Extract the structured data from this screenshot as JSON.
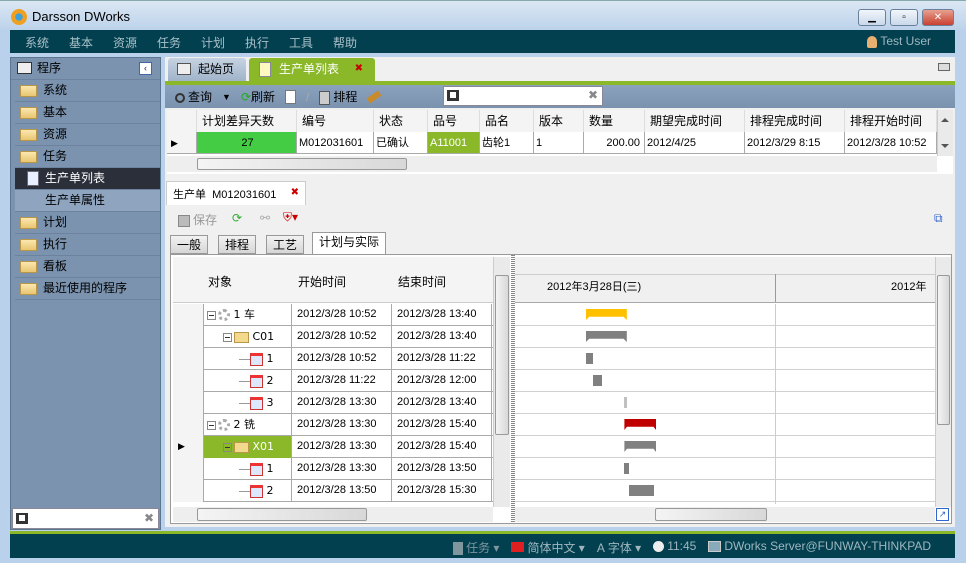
{
  "window": {
    "title": "Darsson DWorks",
    "buttons": [
      "minimize",
      "maximize",
      "close"
    ]
  },
  "menu": [
    "系统",
    "基本",
    "资源",
    "任务",
    "计划",
    "执行",
    "工具",
    "帮助"
  ],
  "user": "Test User",
  "sidebar": {
    "header": "程序",
    "items": [
      {
        "label": "系统",
        "type": "folder"
      },
      {
        "label": "基本",
        "type": "folder"
      },
      {
        "label": "资源",
        "type": "folder"
      },
      {
        "label": "任务",
        "type": "folder"
      },
      {
        "label": "生产单列表",
        "type": "page",
        "selected": true
      },
      {
        "label": "生产单属性",
        "type": "sub"
      },
      {
        "label": "计划",
        "type": "folder"
      },
      {
        "label": "执行",
        "type": "folder"
      },
      {
        "label": "看板",
        "type": "folder"
      },
      {
        "label": "最近使用的程序",
        "type": "recent"
      }
    ],
    "search_value": ""
  },
  "tabs": [
    {
      "label": "起始页",
      "active": false
    },
    {
      "label": "生产单列表",
      "active": true
    }
  ],
  "toolbar": {
    "query": "查询",
    "refresh": "刷新",
    "schedule": "排程",
    "search_value": ""
  },
  "order_grid": {
    "columns": [
      "计划差异天数",
      "编号",
      "状态",
      "品号",
      "品名",
      "版本",
      "数量",
      "期望完成时间",
      "排程完成时间",
      "排程开始时间"
    ],
    "rows": [
      [
        "27",
        "M012031601",
        "已确认",
        "A11001",
        "齿轮1",
        "1",
        "200.00",
        "2012/4/25",
        "2012/3/29 8:15",
        "2012/3/28 10:52"
      ]
    ]
  },
  "detail": {
    "tab_label": "生产单  M012031601",
    "save": "保存",
    "subtabs": [
      "一般",
      "排程",
      "工艺",
      "计划与实际"
    ],
    "active_subtab": "计划与实际",
    "columns": [
      "对象",
      "开始时间",
      "结束时间"
    ],
    "rows": [
      {
        "label": "1 车",
        "level": 0,
        "icon": "gear",
        "start": "2012/3/28 10:52",
        "end": "2012/3/28 13:40",
        "bar": "#ffc000"
      },
      {
        "label": "C01",
        "level": 1,
        "icon": "folder",
        "start": "2012/3/28 10:52",
        "end": "2012/3/28 13:40",
        "bar": "#808080"
      },
      {
        "label": "1",
        "level": 2,
        "icon": "calendar",
        "start": "2012/3/28 10:52",
        "end": "2012/3/28 11:22",
        "bar": "#808080"
      },
      {
        "label": "2",
        "level": 2,
        "icon": "calendar",
        "start": "2012/3/28 11:22",
        "end": "2012/3/28 12:00",
        "bar": "#808080"
      },
      {
        "label": "3",
        "level": 2,
        "icon": "calendar",
        "start": "2012/3/28 13:30",
        "end": "2012/3/28 13:40",
        "bar": "#c0c0c0"
      },
      {
        "label": "2 铣",
        "level": 0,
        "icon": "gear",
        "start": "2012/3/28 13:30",
        "end": "2012/3/28 15:40",
        "bar": "#c00000"
      },
      {
        "label": "X01",
        "level": 1,
        "icon": "folder",
        "start": "2012/3/28 13:30",
        "end": "2012/3/28 15:40",
        "bar": "#808080",
        "selected": true
      },
      {
        "label": "1",
        "level": 2,
        "icon": "calendar",
        "start": "2012/3/28 13:30",
        "end": "2012/3/28 13:50",
        "bar": "#808080"
      },
      {
        "label": "2",
        "level": 2,
        "icon": "calendar",
        "start": "2012/3/28 13:50",
        "end": "2012/3/28 15:30",
        "bar": "#808080"
      }
    ],
    "gantt_dates": [
      "2012年3月28日(三)",
      "2012年"
    ]
  },
  "status": {
    "task": "任务",
    "language": "简体中文",
    "font": "字体",
    "time": "11:45",
    "server": "DWorks Server@FUNWAY-THINKPAD"
  },
  "colors": {
    "menubar": "#02404f",
    "accent_green": "#8ab828",
    "diff_cell": "#44cc44"
  }
}
